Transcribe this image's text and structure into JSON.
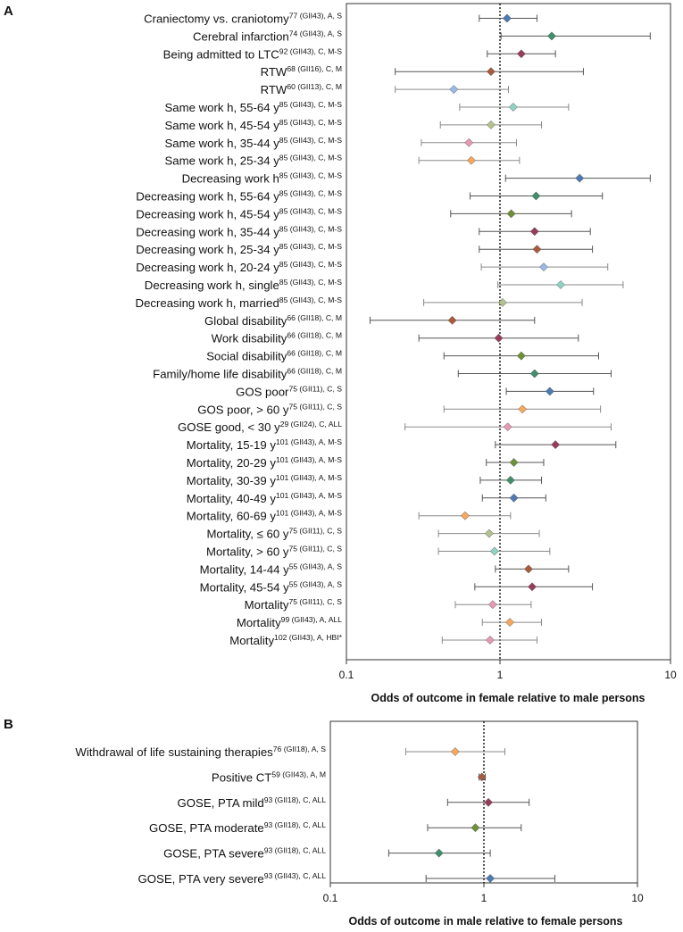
{
  "chart_data": [
    {
      "type": "forest",
      "panel_label": "A",
      "xlabel": "Odds of outcome in female relative to male persons",
      "xscale": "log",
      "xlim": [
        0.1,
        10
      ],
      "xticks": [
        "0.1",
        "1",
        "10"
      ],
      "reference_line": 1,
      "rows": [
        {
          "label": "Craniectomy vs. craniotomy",
          "sup": "77 (GII43), A, S",
          "or": 0.98,
          "lo": 0.66,
          "hi": 1.5,
          "color": "#4e79b5"
        },
        {
          "label": "Cerebral infarction",
          "sup": "74 (GII43), A, S",
          "or": 1.85,
          "lo": 0.9,
          "hi": 7.5,
          "color": "#3f8e6c"
        },
        {
          "label": "Being admitted to LTC",
          "sup": "92 (GII43), C, M-S",
          "or": 1.2,
          "lo": 0.74,
          "hi": 1.95,
          "color": "#983c5c"
        },
        {
          "label": "RTW",
          "sup": "68 (GII16), C, M",
          "or": 0.78,
          "lo": 0.2,
          "hi": 2.9,
          "color": "#a85a3c"
        },
        {
          "label": "RTW",
          "sup": "60 (GII13), C, M",
          "or": 0.46,
          "lo": 0.2,
          "hi": 1.0,
          "color": "#9ab9e6"
        },
        {
          "label": "Same work h, 55-64 y",
          "sup": "85 (GII43), C, M-S",
          "or": 1.07,
          "lo": 0.5,
          "hi": 2.35,
          "color": "#8fd3c4"
        },
        {
          "label": "Same work h, 45-54 y",
          "sup": "85 (GII43), C, M-S",
          "or": 0.78,
          "lo": 0.38,
          "hi": 1.6,
          "color": "#b3c28d"
        },
        {
          "label": "Same work h, 35-44 y",
          "sup": "85 (GII43), C, M-S",
          "or": 0.57,
          "lo": 0.29,
          "hi": 1.12,
          "color": "#e69ab2"
        },
        {
          "label": "Same work h, 25-34 y",
          "sup": "85 (GII43), C, M-S",
          "or": 0.59,
          "lo": 0.28,
          "hi": 1.17,
          "color": "#f7a85c"
        },
        {
          "label": "Decreasing work h",
          "sup": "85 (GII43), C, M-S",
          "or": 2.75,
          "lo": 0.96,
          "hi": 7.5,
          "color": "#4e79b5"
        },
        {
          "label": "Decreasing work h, 55-64 y",
          "sup": "85 (GII43), C, M-S",
          "or": 1.48,
          "lo": 0.58,
          "hi": 3.8,
          "color": "#3f8e6c"
        },
        {
          "label": "Decreasing work h, 45-54 y",
          "sup": "85 (GII43), C, M-S",
          "or": 1.04,
          "lo": 0.44,
          "hi": 2.45,
          "color": "#6d8f35"
        },
        {
          "label": "Decreasing work h, 35-44 y",
          "sup": "85 (GII43), C, M-S",
          "or": 1.45,
          "lo": 0.66,
          "hi": 3.2,
          "color": "#983c5c"
        },
        {
          "label": "Decreasing work h, 25-34 y",
          "sup": "85 (GII43), C, M-S",
          "or": 1.5,
          "lo": 0.66,
          "hi": 3.3,
          "color": "#a85a3c"
        },
        {
          "label": "Decreasing work h, 20-24 y",
          "sup": "85 (GII43), C, M-S",
          "or": 1.65,
          "lo": 0.68,
          "hi": 4.1,
          "color": "#9ab9e6"
        },
        {
          "label": "Decreasing work h, single",
          "sup": "85 (GII43), C, M-S",
          "or": 2.1,
          "lo": 0.86,
          "hi": 5.1,
          "color": "#8fd3c4"
        },
        {
          "label": "Decreasing work h, married",
          "sup": "85 (GII43), C, M-S",
          "or": 0.92,
          "lo": 0.3,
          "hi": 2.85,
          "color": "#b3c28d"
        },
        {
          "label": "Global disability",
          "sup": "66 (GII18), C, M",
          "or": 0.45,
          "lo": 0.14,
          "hi": 1.45,
          "color": "#a85a3c"
        },
        {
          "label": "Work disability",
          "sup": "66 (GII18), C, M",
          "or": 0.87,
          "lo": 0.28,
          "hi": 2.7,
          "color": "#983c5c"
        },
        {
          "label": "Social disability",
          "sup": "66 (GII18), C, M",
          "or": 1.2,
          "lo": 0.4,
          "hi": 3.6,
          "color": "#6d8f35"
        },
        {
          "label": "Family/home life disability",
          "sup": "66 (GII18), C, M",
          "or": 1.45,
          "lo": 0.49,
          "hi": 4.3,
          "color": "#3f8e6c"
        },
        {
          "label": "GOS poor",
          "sup": "75 (GII11), C, S",
          "or": 1.8,
          "lo": 0.97,
          "hi": 3.35,
          "color": "#4e79b5"
        },
        {
          "label": "GOS poor, > 60 y",
          "sup": "75 (GII11), C, S",
          "or": 1.22,
          "lo": 0.4,
          "hi": 3.7,
          "color": "#f7a85c"
        },
        {
          "label": "GOSE good, < 30 y",
          "sup": "29 (GII24), C, ALL",
          "or": 0.99,
          "lo": 0.23,
          "hi": 4.3,
          "color": "#e69ab2"
        },
        {
          "label": "Mortality, 15-19 y",
          "sup": "101 (GII43), A, M-S",
          "or": 1.95,
          "lo": 0.83,
          "hi": 4.6,
          "color": "#983c5c"
        },
        {
          "label": "Mortality, 20-29 y",
          "sup": "101 (GII43), A, M-S",
          "or": 1.08,
          "lo": 0.73,
          "hi": 1.65,
          "color": "#6d8f35"
        },
        {
          "label": "Mortality, 30-39 y",
          "sup": "101 (GII43), A, M-S",
          "or": 1.03,
          "lo": 0.67,
          "hi": 1.6,
          "color": "#3f8e6c"
        },
        {
          "label": "Mortality, 40-49 y",
          "sup": "101 (GII43), A, M-S",
          "or": 1.08,
          "lo": 0.69,
          "hi": 1.7,
          "color": "#4e79b5"
        },
        {
          "label": "Mortality, 60-69 y",
          "sup": "101 (GII43), A, M-S",
          "or": 0.54,
          "lo": 0.28,
          "hi": 1.03,
          "color": "#f7a85c"
        },
        {
          "label": "Mortality, ≤ 60 y",
          "sup": "75 (GII11), C, S",
          "or": 0.76,
          "lo": 0.37,
          "hi": 1.55,
          "color": "#b3c28d"
        },
        {
          "label": "Mortality, > 60 y",
          "sup": "75 (GII11), C, S",
          "or": 0.82,
          "lo": 0.37,
          "hi": 1.8,
          "color": "#8fd3c4"
        },
        {
          "label": "Mortality, 14-44 y",
          "sup": "55 (GII43), A, S",
          "or": 1.33,
          "lo": 0.83,
          "hi": 2.35,
          "color": "#a85a3c"
        },
        {
          "label": "Mortality, 45-54 y",
          "sup": "55 (GII43), A, S",
          "or": 1.4,
          "lo": 0.62,
          "hi": 3.3,
          "color": "#983c5c"
        },
        {
          "label": "Mortality",
          "sup": "75 (GII11), C, S",
          "or": 0.8,
          "lo": 0.47,
          "hi": 1.38,
          "color": "#e69ab2"
        },
        {
          "label": "Mortality",
          "sup": "99 (GII43), A, ALL",
          "or": 1.02,
          "lo": 0.69,
          "hi": 1.6,
          "color": "#f7a85c"
        },
        {
          "label": "Mortality",
          "sup": "102 (GII43), A, HBI*",
          "or": 0.77,
          "lo": 0.39,
          "hi": 1.5,
          "color": "#e69ab2"
        }
      ]
    },
    {
      "type": "forest",
      "panel_label": "B",
      "xlabel": "Odds of outcome in male relative to female persons",
      "xscale": "log",
      "xlim": [
        0.1,
        10
      ],
      "xticks": [
        "0.1",
        "1",
        "10"
      ],
      "reference_line": 1,
      "rows": [
        {
          "label": "Withdrawal of life sustaining therapies",
          "sup": "76 (GII18), A, S",
          "or": 0.65,
          "lo": 0.31,
          "hi": 1.37,
          "color": "#f7a85c"
        },
        {
          "label": "Positive CT",
          "sup": "59 (GII43), A, M",
          "or": 0.97,
          "lo": 0.93,
          "hi": 1.02,
          "color": "#a85a3c"
        },
        {
          "label": "GOSE, PTA mild",
          "sup": "93 (GII18), C, ALL",
          "or": 1.07,
          "lo": 0.58,
          "hi": 1.97,
          "color": "#983c5c"
        },
        {
          "label": "GOSE, PTA moderate",
          "sup": "93 (GII18), C, ALL",
          "or": 0.88,
          "lo": 0.43,
          "hi": 1.75,
          "color": "#6d8f35"
        },
        {
          "label": "GOSE, PTA severe",
          "sup": "93 (GII18), C, ALL",
          "or": 0.51,
          "lo": 0.24,
          "hi": 1.1,
          "color": "#3f8e6c"
        },
        {
          "label": "GOSE, PTA very severe",
          "sup": "93 (GII43), C, ALL",
          "or": 1.1,
          "lo": 0.42,
          "hi": 2.9,
          "color": "#4e79b5"
        }
      ]
    }
  ]
}
